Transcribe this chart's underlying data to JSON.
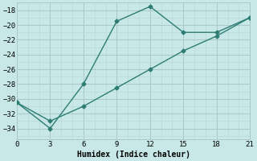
{
  "line1_x": [
    0,
    3,
    6,
    9,
    12,
    15,
    18,
    21
  ],
  "line1_y": [
    -30.5,
    -34,
    -28,
    -19.5,
    -17.5,
    -21,
    -21,
    -19
  ],
  "line2_x": [
    0,
    3,
    6,
    9,
    12,
    15,
    18,
    21
  ],
  "line2_y": [
    -30.5,
    -33,
    -31,
    -28.5,
    -26,
    -23.5,
    -21.5,
    -19
  ],
  "color": "#2d7d72",
  "bg_color": "#c8e8e8",
  "grid_color_major": "#aac8c8",
  "grid_color_minor": "#bcd8d8",
  "xlabel": "Humidex (Indice chaleur)",
  "xlim": [
    0,
    21
  ],
  "ylim": [
    -35.5,
    -17
  ],
  "xticks": [
    0,
    3,
    6,
    9,
    12,
    15,
    18,
    21
  ],
  "yticks": [
    -18,
    -20,
    -22,
    -24,
    -26,
    -28,
    -30,
    -32,
    -34
  ],
  "marker": "D",
  "markersize": 2.5,
  "linewidth": 1.0,
  "font_family": "monospace",
  "xlabel_fontsize": 7.0,
  "tick_fontsize": 6.5
}
